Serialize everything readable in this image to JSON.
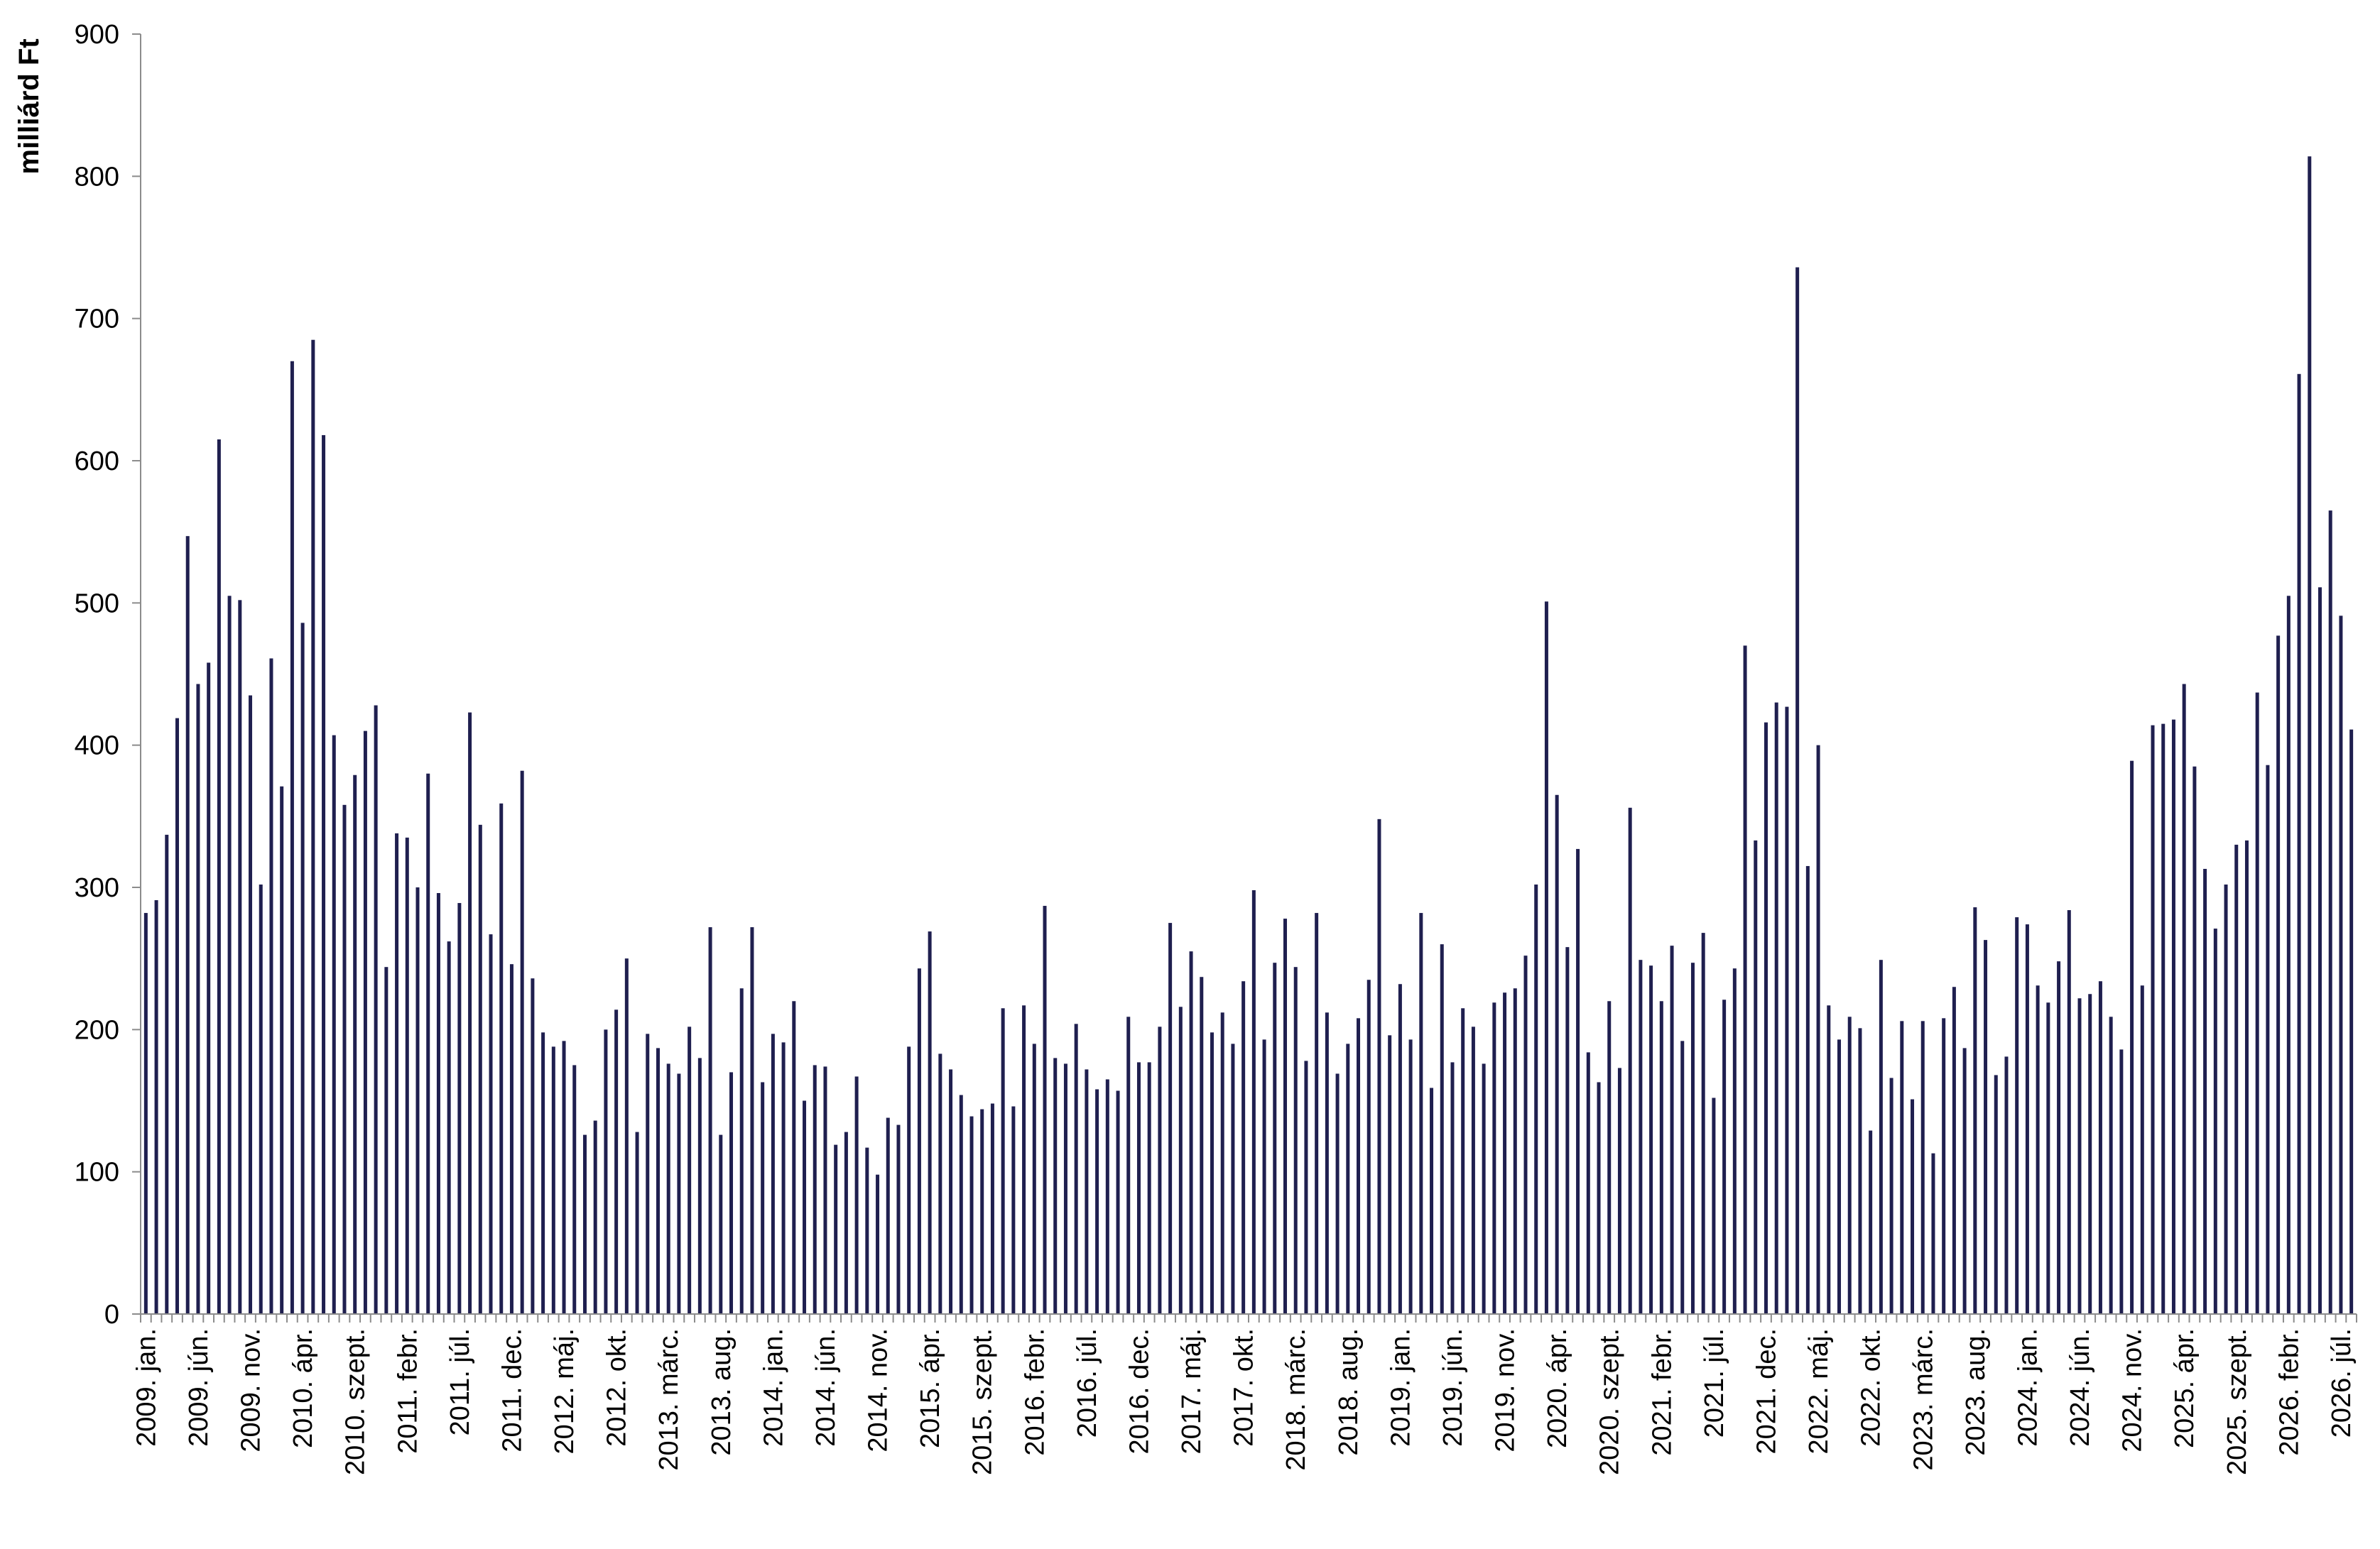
{
  "chart_data": {
    "type": "bar",
    "title": "",
    "xlabel": "",
    "ylabel": "milliárd Ft",
    "ylim": [
      0,
      900
    ],
    "yticks": [
      0,
      100,
      200,
      300,
      400,
      500,
      600,
      700,
      800,
      900
    ],
    "grid": false,
    "bar_color": "#1f1f4f",
    "x_start": "2009. jan.",
    "x_end": "2026. aug.",
    "x_tick_labels": [
      "2009. jan.",
      "2009. jún.",
      "2009. nov.",
      "2010. ápr.",
      "2010. szept.",
      "2011. febr.",
      "2011. júl.",
      "2011. dec.",
      "2012. máj.",
      "2012. okt.",
      "2013. márc.",
      "2013. aug.",
      "2014. jan.",
      "2014. jún.",
      "2014. nov.",
      "2015. ápr.",
      "2015. szept.",
      "2016. febr.",
      "2016. júl.",
      "2016. dec.",
      "2017. máj.",
      "2017. okt.",
      "2018. márc.",
      "2018. aug.",
      "2019. jan.",
      "2019. jún.",
      "2019. nov.",
      "2020. ápr.",
      "2020. szept.",
      "2021. febr.",
      "2021. júl.",
      "2021. dec.",
      "2022. máj.",
      "2022. okt.",
      "2023. márc.",
      "2023. aug.",
      "2024. jan.",
      "2024. jún.",
      "2024. nov.",
      "2025. ápr.",
      "2025. szept.",
      "2026. febr.",
      "2026. júl."
    ],
    "values": [
      282,
      291,
      337,
      419,
      547,
      443,
      458,
      615,
      505,
      502,
      435,
      302,
      461,
      371,
      670,
      486,
      685,
      618,
      407,
      358,
      379,
      410,
      428,
      244,
      338,
      335,
      300,
      380,
      296,
      262,
      289,
      423,
      344,
      267,
      359,
      246,
      382,
      236,
      198,
      188,
      192,
      175,
      126,
      136,
      200,
      214,
      250,
      128,
      197,
      187,
      176,
      169,
      202,
      180,
      272,
      126,
      170,
      229,
      272,
      163,
      197,
      191,
      220,
      150,
      175,
      174,
      119,
      128,
      167,
      117,
      98,
      138,
      133,
      188,
      243,
      269,
      183,
      172,
      154,
      139,
      144,
      148,
      215,
      146,
      217,
      190,
      287,
      180,
      176,
      204,
      172,
      158,
      165,
      157,
      209,
      177,
      177,
      202,
      275,
      216,
      255,
      237,
      198,
      212,
      190,
      234,
      298,
      193,
      247,
      278,
      244,
      178,
      282,
      212,
      169,
      190,
      208,
      235,
      348,
      196,
      232,
      193,
      282,
      159,
      260,
      177,
      215,
      202,
      176,
      219,
      226,
      229,
      252,
      302,
      501,
      365,
      258,
      327,
      184,
      163,
      220,
      173,
      356,
      249,
      245,
      220,
      259,
      192,
      247,
      268,
      152,
      221,
      243,
      470,
      333,
      416,
      430,
      427,
      736,
      315,
      400,
      217,
      193,
      209,
      201,
      129,
      249,
      166,
      206,
      151,
      206,
      113,
      208,
      230,
      187,
      286,
      263,
      168,
      181,
      279,
      274,
      231,
      219,
      248,
      284,
      222,
      225,
      234,
      209,
      186,
      389,
      231,
      414,
      415,
      418,
      443,
      385,
      313,
      271,
      302,
      330,
      333,
      437,
      386,
      477,
      505,
      661,
      814,
      511,
      565,
      491,
      411
    ]
  }
}
